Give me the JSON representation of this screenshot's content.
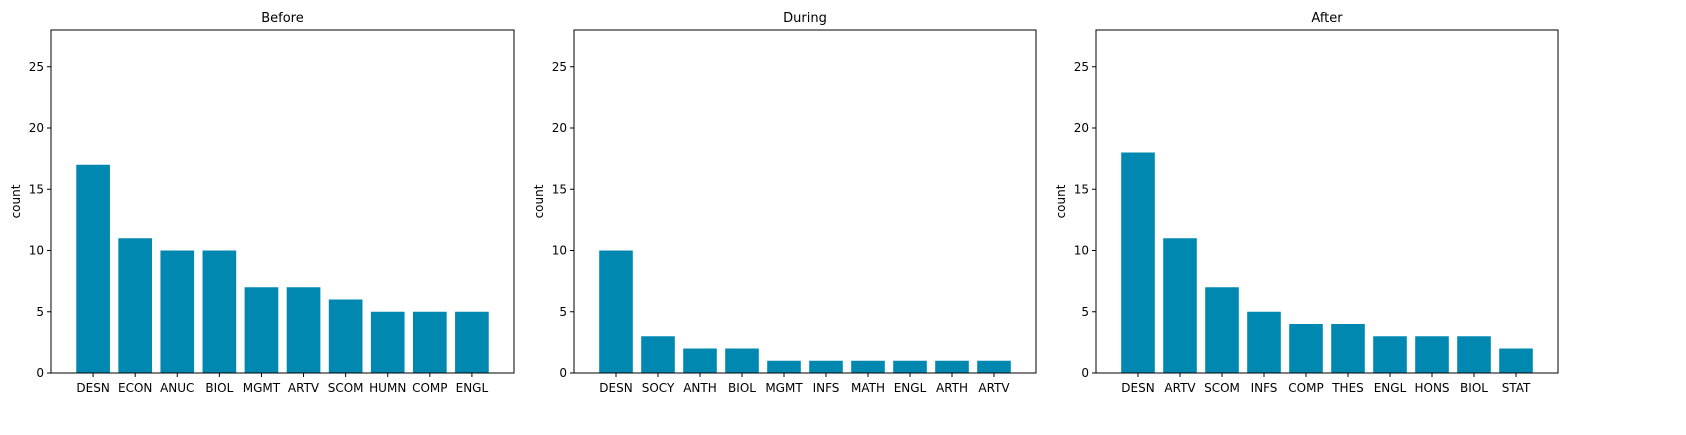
{
  "chart_data": [
    {
      "type": "bar",
      "title": "Before",
      "xlabel": "",
      "ylabel": "count",
      "ylim": [
        0,
        28
      ],
      "yticks": [
        0,
        5,
        10,
        15,
        20,
        25
      ],
      "grid": false,
      "bar_color": "#0088b0",
      "categories": [
        "DESN",
        "ECON",
        "ANUC",
        "BIOL",
        "MGMT",
        "ARTV",
        "SCOM",
        "HUMN",
        "COMP",
        "ENGL"
      ],
      "values": [
        17,
        11,
        10,
        10,
        7,
        7,
        6,
        5,
        5,
        5
      ]
    },
    {
      "type": "bar",
      "title": "During",
      "xlabel": "",
      "ylabel": "count",
      "ylim": [
        0,
        28
      ],
      "yticks": [
        0,
        5,
        10,
        15,
        20,
        25
      ],
      "grid": false,
      "bar_color": "#0088b0",
      "categories": [
        "DESN",
        "SOCY",
        "ANTH",
        "BIOL",
        "MGMT",
        "INFS",
        "MATH",
        "ENGL",
        "ARTH",
        "ARTV"
      ],
      "values": [
        10,
        3,
        2,
        2,
        1,
        1,
        1,
        1,
        1,
        1
      ]
    },
    {
      "type": "bar",
      "title": "After",
      "xlabel": "",
      "ylabel": "count",
      "ylim": [
        0,
        28
      ],
      "yticks": [
        0,
        5,
        10,
        15,
        20,
        25
      ],
      "grid": false,
      "bar_color": "#0088b0",
      "categories": [
        "DESN",
        "ARTV",
        "SCOM",
        "INFS",
        "COMP",
        "THES",
        "ENGL",
        "HONS",
        "BIOL",
        "STAT"
      ],
      "values": [
        18,
        11,
        7,
        5,
        4,
        4,
        3,
        3,
        3,
        2
      ]
    }
  ]
}
